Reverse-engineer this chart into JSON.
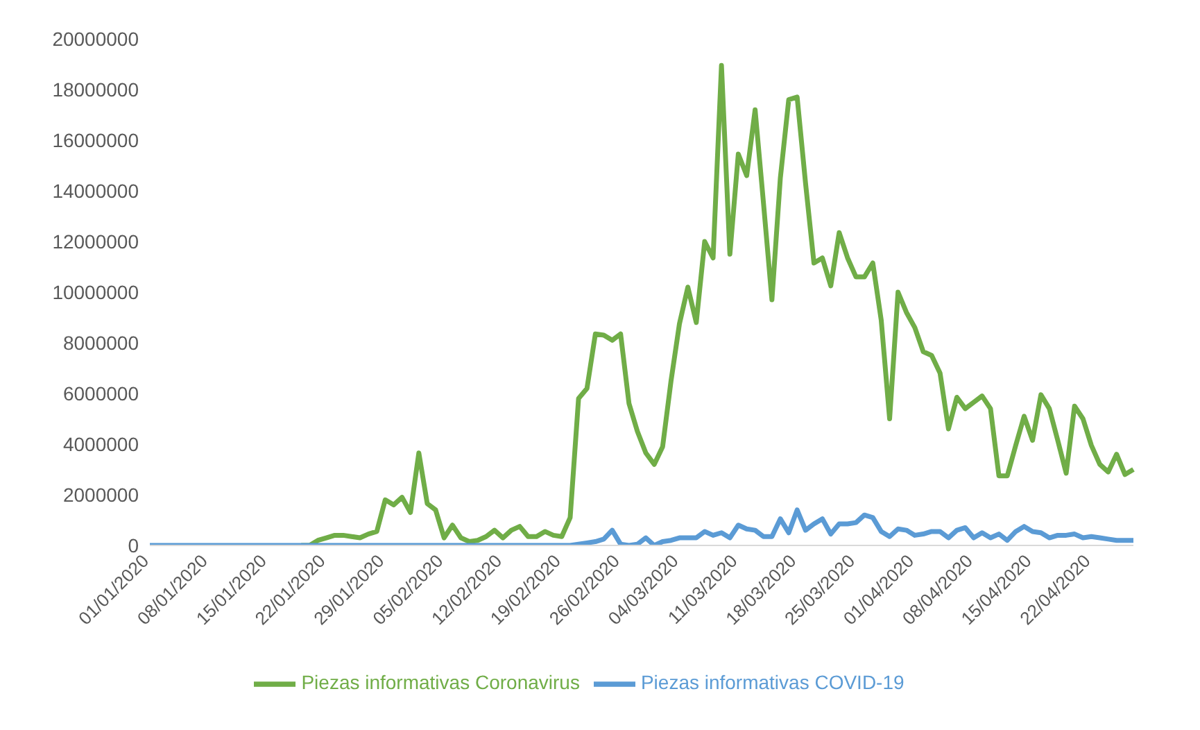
{
  "chart_data": {
    "type": "line",
    "categories": [
      "01/01/2020",
      null,
      null,
      null,
      null,
      null,
      null,
      "08/01/2020",
      null,
      null,
      null,
      null,
      null,
      null,
      "15/01/2020",
      null,
      null,
      null,
      null,
      null,
      null,
      "22/01/2020",
      null,
      null,
      null,
      null,
      null,
      null,
      "29/01/2020",
      null,
      null,
      null,
      null,
      null,
      null,
      "05/02/2020",
      null,
      null,
      null,
      null,
      null,
      null,
      "12/02/2020",
      null,
      null,
      null,
      null,
      null,
      null,
      "19/02/2020",
      null,
      null,
      null,
      null,
      null,
      null,
      "26/02/2020",
      null,
      null,
      null,
      null,
      null,
      null,
      "04/03/2020",
      null,
      null,
      null,
      null,
      null,
      null,
      "11/03/2020",
      null,
      null,
      null,
      null,
      null,
      null,
      "18/03/2020",
      null,
      null,
      null,
      null,
      null,
      null,
      "25/03/2020",
      null,
      null,
      null,
      null,
      null,
      null,
      "01/04/2020",
      null,
      null,
      null,
      null,
      null,
      null,
      "08/04/2020",
      null,
      null,
      null,
      null,
      null,
      null,
      "15/04/2020",
      null,
      null,
      null,
      null,
      null,
      null,
      "22/04/2020",
      null,
      null,
      null,
      null,
      null
    ],
    "series": [
      {
        "name": "Piezas informativas Coronavirus",
        "color": "#70ad47",
        "values": [
          null,
          null,
          null,
          null,
          null,
          null,
          null,
          null,
          null,
          null,
          null,
          null,
          null,
          null,
          null,
          null,
          null,
          null,
          0,
          0,
          200000,
          300000,
          400000,
          400000,
          350000,
          300000,
          450000,
          550000,
          1800000,
          1600000,
          1900000,
          1300000,
          3650000,
          1650000,
          1400000,
          300000,
          800000,
          300000,
          150000,
          200000,
          350000,
          600000,
          300000,
          600000,
          750000,
          350000,
          350000,
          550000,
          400000,
          350000,
          1100000,
          5800000,
          6200000,
          8350000,
          8300000,
          8100000,
          8350000,
          5600000,
          4500000,
          3650000,
          3200000,
          3900000,
          6500000,
          8750000,
          10200000,
          8800000,
          12000000,
          11350000,
          18950000,
          11500000,
          15450000,
          14600000,
          17200000,
          13500000,
          9700000,
          14500000,
          17600000,
          17700000,
          14300000,
          11150000,
          11350000,
          10250000,
          12350000,
          11350000,
          10600000,
          10600000,
          11150000,
          8900000,
          5000000,
          10000000,
          9200000,
          8600000,
          7650000,
          7500000,
          6800000,
          4600000,
          5850000,
          5400000,
          5650000,
          5900000,
          5400000,
          2750000,
          2750000,
          3950000,
          5100000,
          4150000,
          5950000,
          5400000,
          4150000,
          2850000,
          5500000,
          5000000,
          3950000,
          3200000,
          2900000,
          3600000,
          2800000,
          3000000
        ]
      },
      {
        "name": "Piezas informativas COVID-19",
        "color": "#5b9bd5",
        "values": [
          0,
          0,
          0,
          0,
          0,
          0,
          0,
          0,
          0,
          0,
          0,
          0,
          0,
          0,
          0,
          0,
          0,
          0,
          0,
          0,
          0,
          0,
          0,
          0,
          0,
          0,
          0,
          0,
          0,
          0,
          0,
          0,
          0,
          0,
          0,
          0,
          0,
          0,
          0,
          0,
          0,
          0,
          0,
          0,
          0,
          0,
          0,
          0,
          0,
          0,
          0,
          50000,
          100000,
          150000,
          250000,
          600000,
          50000,
          0,
          50000,
          300000,
          0,
          150000,
          200000,
          300000,
          300000,
          300000,
          550000,
          400000,
          500000,
          300000,
          800000,
          650000,
          600000,
          350000,
          350000,
          1050000,
          500000,
          1400000,
          600000,
          850000,
          1050000,
          450000,
          850000,
          850000,
          900000,
          1200000,
          1100000,
          550000,
          350000,
          650000,
          600000,
          400000,
          450000,
          550000,
          550000,
          300000,
          600000,
          700000,
          300000,
          500000,
          300000,
          450000,
          200000,
          550000,
          750000,
          550000,
          500000,
          300000,
          400000,
          400000,
          450000,
          300000,
          350000,
          300000,
          250000,
          200000,
          200000,
          200000
        ]
      }
    ],
    "ylim": [
      0,
      20000000
    ],
    "yticks": [
      0,
      2000000,
      4000000,
      6000000,
      8000000,
      10000000,
      12000000,
      14000000,
      16000000,
      18000000,
      20000000
    ],
    "grid": false,
    "legend": "bottom",
    "marker": "none",
    "line_style": "solid"
  }
}
